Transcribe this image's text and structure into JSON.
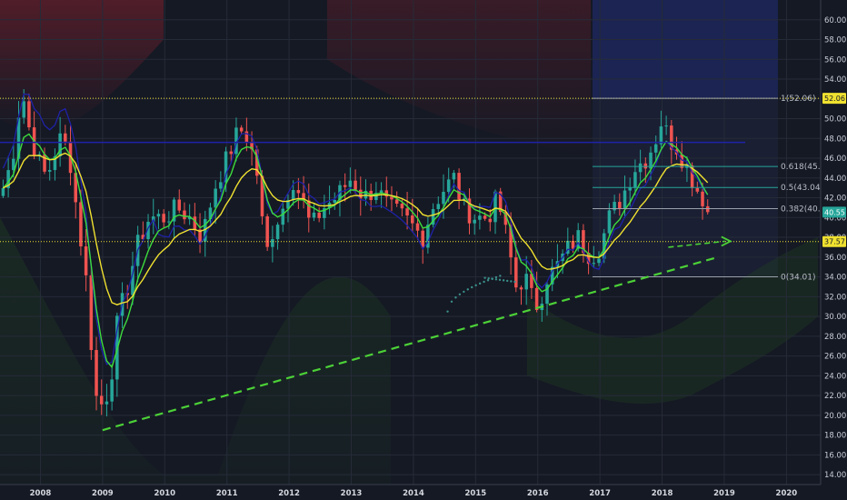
{
  "chart_data": {
    "type": "candlestick",
    "ylim": [
      13,
      62
    ],
    "y_ticks": [
      "14.00",
      "16.00",
      "18.00",
      "20.00",
      "22.00",
      "24.00",
      "26.00",
      "28.00",
      "30.00",
      "32.00",
      "34.00",
      "36.00",
      "38.00",
      "40.00",
      "42.00",
      "44.00",
      "46.00",
      "48.00",
      "50.00",
      "52.00",
      "54.00",
      "56.00",
      "58.00",
      "60.00"
    ],
    "x_ticks": [
      {
        "label": "2008",
        "t": 2008.0
      },
      {
        "label": "2009",
        "t": 2009.0
      },
      {
        "label": "2010",
        "t": 2010.0
      },
      {
        "label": "2011",
        "t": 2011.0
      },
      {
        "label": "2012",
        "t": 2012.0
      },
      {
        "label": "2013",
        "t": 2013.0
      },
      {
        "label": "2014",
        "t": 2014.0
      },
      {
        "label": "2015",
        "t": 2015.0
      },
      {
        "label": "2016",
        "t": 2016.0
      },
      {
        "label": "2017",
        "t": 2017.0
      },
      {
        "label": "2018",
        "t": 2018.0
      },
      {
        "label": "2019",
        "t": 2019.0
      },
      {
        "label": "2020",
        "t": 2020.0
      }
    ],
    "x_range": [
      2007.35,
      2020.55
    ],
    "colors": {
      "background": "#151924",
      "up": "#26a69a",
      "down": "#ef5350",
      "ema_fast": "#3ddc3d",
      "ema_slow": "#f0e130",
      "blue_line": "#1f22a8",
      "fib_line": "#26a69a",
      "trendline": "#4cd137",
      "dotted_level": "#f0e130",
      "grid": "#262b38"
    },
    "close_key_points": [
      [
        2007.4,
        43
      ],
      [
        2007.55,
        46
      ],
      [
        2007.7,
        53
      ],
      [
        2007.82,
        49
      ],
      [
        2007.95,
        46
      ],
      [
        2008.1,
        44
      ],
      [
        2008.3,
        48
      ],
      [
        2008.45,
        47
      ],
      [
        2008.6,
        40
      ],
      [
        2008.75,
        33
      ],
      [
        2008.88,
        22
      ],
      [
        2009.0,
        21
      ],
      [
        2009.12,
        23
      ],
      [
        2009.25,
        30
      ],
      [
        2009.4,
        33
      ],
      [
        2009.55,
        37
      ],
      [
        2009.75,
        40
      ],
      [
        2010.0,
        40
      ],
      [
        2010.2,
        41
      ],
      [
        2010.4,
        40
      ],
      [
        2010.6,
        38
      ],
      [
        2010.8,
        43
      ],
      [
        2011.0,
        46
      ],
      [
        2011.2,
        49
      ],
      [
        2011.35,
        48
      ],
      [
        2011.5,
        44
      ],
      [
        2011.62,
        36
      ],
      [
        2011.75,
        39
      ],
      [
        2011.9,
        41
      ],
      [
        2012.05,
        44
      ],
      [
        2012.2,
        42
      ],
      [
        2012.35,
        39
      ],
      [
        2012.55,
        41
      ],
      [
        2012.75,
        42
      ],
      [
        2013.0,
        44
      ],
      [
        2013.2,
        42
      ],
      [
        2013.4,
        43
      ],
      [
        2013.6,
        41
      ],
      [
        2013.85,
        40
      ],
      [
        2014.0,
        39
      ],
      [
        2014.15,
        38
      ],
      [
        2014.3,
        41
      ],
      [
        2014.5,
        43
      ],
      [
        2014.65,
        44
      ],
      [
        2014.8,
        41
      ],
      [
        2015.0,
        40
      ],
      [
        2015.2,
        40
      ],
      [
        2015.35,
        42
      ],
      [
        2015.5,
        38
      ],
      [
        2015.65,
        33
      ],
      [
        2015.8,
        34
      ],
      [
        2015.9,
        32
      ],
      [
        2016.0,
        31
      ],
      [
        2016.15,
        34
      ],
      [
        2016.3,
        35
      ],
      [
        2016.5,
        37
      ],
      [
        2016.65,
        38
      ],
      [
        2016.85,
        36
      ],
      [
        2017.0,
        37
      ],
      [
        2017.15,
        40
      ],
      [
        2017.35,
        42
      ],
      [
        2017.55,
        45
      ],
      [
        2017.75,
        46
      ],
      [
        2017.9,
        48
      ],
      [
        2018.0,
        50
      ],
      [
        2018.1,
        48
      ],
      [
        2018.25,
        47
      ],
      [
        2018.4,
        45
      ],
      [
        2018.55,
        43
      ],
      [
        2018.65,
        42
      ],
      [
        2018.72,
        40
      ],
      [
        2018.8,
        40.55
      ]
    ],
    "fib_levels": [
      {
        "label": "1(52.06)",
        "value": 52.06,
        "color": "#9aa0aa"
      },
      {
        "label": "0.618(45.17)",
        "value": 45.17,
        "color": "#26a69a"
      },
      {
        "label": "0.5(43.04)",
        "value": 43.04,
        "color": "#26a69a"
      },
      {
        "label": "0.382(40.90)",
        "value": 40.9,
        "color": "#9aa0aa"
      },
      {
        "label": "0(34.01)",
        "value": 34.01,
        "color": "#9aa0aa"
      }
    ],
    "price_tags": [
      {
        "label": "52.06",
        "value": 52.06,
        "bg": "#f0e130",
        "fg": "#151924"
      },
      {
        "label": "40.55",
        "value": 40.55,
        "bg": "#26a69a",
        "fg": "#ffffff"
      },
      {
        "label": "37.57",
        "value": 37.57,
        "bg": "#f0e130",
        "fg": "#151924"
      }
    ],
    "dotted_levels": [
      52.06,
      37.57
    ],
    "blue_level": 47.6,
    "trendline": {
      "from": [
        2009.0,
        18.5
      ],
      "to": [
        2018.9,
        36.0
      ]
    },
    "arrow": {
      "from": [
        2018.1,
        37.0
      ],
      "to": [
        2019.1,
        37.6
      ]
    }
  }
}
